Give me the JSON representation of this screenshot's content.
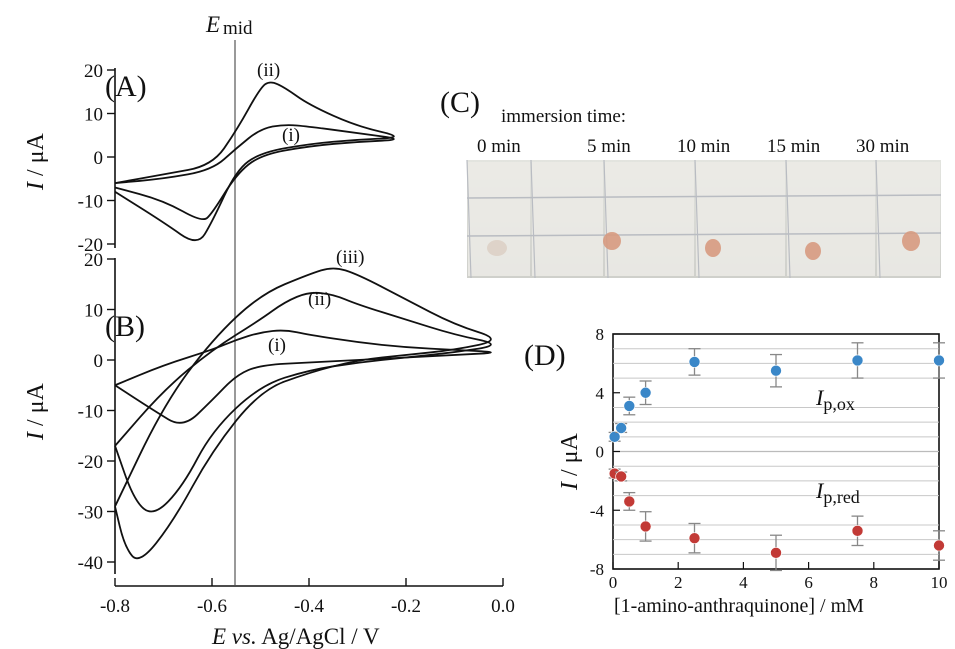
{
  "figure": {
    "emid_label": "E",
    "emid_sub": "mid",
    "x_axis_label": {
      "italic": "E vs.",
      "rest": " Ag/AgCl / V"
    },
    "x_ticks": [
      "-0.8",
      "-0.6",
      "-0.4",
      "-0.2",
      "0.0"
    ],
    "ylabel_prefix": "I",
    "ylabel_suffix": " / μA"
  },
  "panel_A": {
    "label": "(A)",
    "y_ticks": [
      "20",
      "10",
      "0",
      "-10",
      "-20"
    ],
    "curve_labels": [
      "(ii)",
      "(i)"
    ]
  },
  "panel_B": {
    "label": "(B)",
    "y_ticks": [
      "20",
      "10",
      "0",
      "-10",
      "-20",
      "-30",
      "-40"
    ],
    "curve_labels": [
      "(iii)",
      "(ii)",
      "(i)"
    ]
  },
  "panel_C": {
    "label": "(C)",
    "caption": "immersion time:",
    "times": [
      "0 min",
      "5 min",
      "10 min",
      "15 min",
      "30 min"
    ],
    "colors": {
      "background": "#d8d9d4",
      "paper": "#ecebe6",
      "grid": "#b9bcc2",
      "spot_faint": "#d9cbbd",
      "spot": "#d79a80"
    }
  },
  "panel_D": {
    "label": "(D)",
    "xlabel": "[1-amino-anthraquinone] / mM",
    "ylabel_prefix": "I",
    "ylabel_suffix": " / μA",
    "x_ticks": [
      "0",
      "2",
      "4",
      "6",
      "8",
      "10"
    ],
    "y_ticks": [
      "8",
      "4",
      "0",
      "-4",
      "-8"
    ],
    "series_labels": [
      {
        "main": "I",
        "sub": "p,ox"
      },
      {
        "main": "I",
        "sub": "p,red"
      }
    ]
  },
  "chart_data": [
    {
      "type": "line",
      "title": "(A)",
      "xlabel": "E vs. Ag/AgCl / V",
      "ylabel": "I / μA",
      "xlim": [
        -0.8,
        0.0
      ],
      "ylim": [
        -20,
        20
      ],
      "vertical_line": {
        "label": "Emid",
        "x": -0.55
      },
      "series": [
        {
          "name": "(i)",
          "points": [
            [
              -0.8,
              -6
            ],
            [
              -0.7,
              -5
            ],
            [
              -0.6,
              -3
            ],
            [
              -0.55,
              2
            ],
            [
              -0.5,
              6.5
            ],
            [
              -0.45,
              7.5
            ],
            [
              -0.4,
              7
            ],
            [
              -0.3,
              5.5
            ],
            [
              -0.2,
              4
            ],
            [
              -0.3,
              3.5
            ],
            [
              -0.4,
              2.5
            ],
            [
              -0.5,
              0.5
            ],
            [
              -0.55,
              -4
            ],
            [
              -0.6,
              -13
            ],
            [
              -0.62,
              -15
            ],
            [
              -0.7,
              -10
            ],
            [
              -0.8,
              -7
            ]
          ]
        },
        {
          "name": "(ii)",
          "points": [
            [
              -0.8,
              -6
            ],
            [
              -0.7,
              -4
            ],
            [
              -0.6,
              -2
            ],
            [
              -0.55,
              6
            ],
            [
              -0.5,
              16
            ],
            [
              -0.48,
              17.5
            ],
            [
              -0.45,
              16
            ],
            [
              -0.4,
              12
            ],
            [
              -0.3,
              7
            ],
            [
              -0.2,
              4.5
            ],
            [
              -0.3,
              4
            ],
            [
              -0.4,
              3
            ],
            [
              -0.5,
              1
            ],
            [
              -0.55,
              -3
            ],
            [
              -0.6,
              -15
            ],
            [
              -0.63,
              -20.5
            ],
            [
              -0.7,
              -15
            ],
            [
              -0.8,
              -8
            ]
          ]
        }
      ]
    },
    {
      "type": "line",
      "title": "(B)",
      "xlabel": "E vs. Ag/AgCl / V",
      "ylabel": "I / μA",
      "xlim": [
        -0.8,
        0.0
      ],
      "ylim": [
        -40,
        20
      ],
      "vertical_line": {
        "label": "Emid",
        "x": -0.55
      },
      "series": [
        {
          "name": "(i)",
          "points": [
            [
              -0.8,
              -5
            ],
            [
              -0.7,
              -1
            ],
            [
              -0.6,
              2
            ],
            [
              -0.55,
              4
            ],
            [
              -0.5,
              5.5
            ],
            [
              -0.45,
              6
            ],
            [
              -0.4,
              5
            ],
            [
              -0.3,
              3.5
            ],
            [
              -0.2,
              2.5
            ],
            [
              -0.1,
              2
            ],
            [
              0.0,
              1.5
            ],
            [
              -0.1,
              1
            ],
            [
              -0.2,
              0.5
            ],
            [
              -0.3,
              0
            ],
            [
              -0.4,
              -0.5
            ],
            [
              -0.5,
              -1
            ],
            [
              -0.55,
              -3
            ],
            [
              -0.6,
              -8
            ],
            [
              -0.66,
              -13.5
            ],
            [
              -0.72,
              -10
            ],
            [
              -0.8,
              -5
            ]
          ]
        },
        {
          "name": "(ii)",
          "points": [
            [
              -0.8,
              -17
            ],
            [
              -0.7,
              -6
            ],
            [
              -0.6,
              2
            ],
            [
              -0.5,
              8
            ],
            [
              -0.45,
              11.5
            ],
            [
              -0.4,
              13.5
            ],
            [
              -0.35,
              13
            ],
            [
              -0.3,
              11
            ],
            [
              -0.2,
              8
            ],
            [
              -0.1,
              5
            ],
            [
              0.0,
              3
            ],
            [
              -0.1,
              1.5
            ],
            [
              -0.2,
              0.5
            ],
            [
              -0.3,
              -0.5
            ],
            [
              -0.4,
              -2
            ],
            [
              -0.5,
              -5
            ],
            [
              -0.6,
              -14
            ],
            [
              -0.66,
              -25
            ],
            [
              -0.72,
              -31
            ],
            [
              -0.76,
              -28
            ],
            [
              -0.8,
              -17
            ]
          ]
        },
        {
          "name": "(iii)",
          "points": [
            [
              -0.8,
              -29
            ],
            [
              -0.7,
              -9
            ],
            [
              -0.6,
              4
            ],
            [
              -0.5,
              13
            ],
            [
              -0.4,
              17
            ],
            [
              -0.35,
              18.5
            ],
            [
              -0.3,
              17
            ],
            [
              -0.2,
              12
            ],
            [
              -0.1,
              7
            ],
            [
              0.0,
              4
            ],
            [
              -0.1,
              2
            ],
            [
              -0.2,
              1
            ],
            [
              -0.3,
              0
            ],
            [
              -0.4,
              -2.5
            ],
            [
              -0.5,
              -6
            ],
            [
              -0.6,
              -18
            ],
            [
              -0.68,
              -32
            ],
            [
              -0.75,
              -40.5
            ],
            [
              -0.78,
              -37
            ],
            [
              -0.8,
              -29
            ]
          ]
        }
      ]
    },
    {
      "type": "scatter",
      "title": "(D)",
      "xlabel": "[1-amino-anthraquinone] / mM",
      "ylabel": "I / μA",
      "xlim": [
        0,
        10
      ],
      "ylim": [
        -8,
        8
      ],
      "grid": true,
      "series": [
        {
          "name": "Ip,ox",
          "color": "#3a87c8",
          "x": [
            0.05,
            0.25,
            0.5,
            1,
            2.5,
            5,
            7.5,
            10
          ],
          "y": [
            1.0,
            1.6,
            3.1,
            4.0,
            6.1,
            5.5,
            6.2,
            6.2
          ],
          "err": [
            0.3,
            0.3,
            0.6,
            0.8,
            0.9,
            1.1,
            1.2,
            1.2
          ]
        },
        {
          "name": "Ip,red",
          "color": "#c23a36",
          "x": [
            0.05,
            0.25,
            0.5,
            1,
            2.5,
            5,
            7.5,
            10
          ],
          "y": [
            -1.5,
            -1.7,
            -3.4,
            -5.1,
            -5.9,
            -6.9,
            -5.4,
            -6.4
          ],
          "err": [
            0.3,
            0.3,
            0.6,
            1.0,
            1.0,
            1.2,
            1.0,
            1.0
          ]
        }
      ]
    }
  ]
}
